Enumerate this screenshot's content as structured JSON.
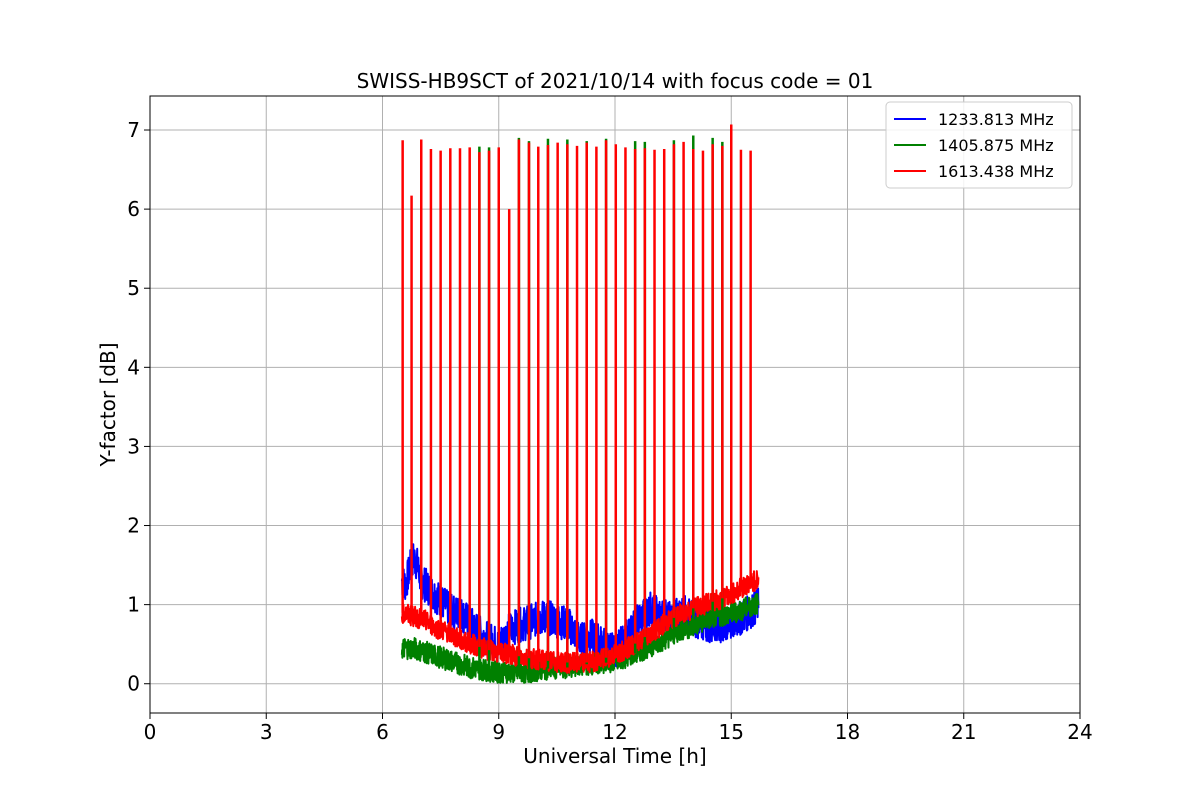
{
  "chart_data": {
    "type": "line",
    "title": "SWISS-HB9SCT of 2021/10/14 with focus code = 01",
    "xlabel": "Universal Time [h]",
    "ylabel": "Y-factor [dB]",
    "xlim": [
      0,
      24
    ],
    "ylim": [
      -0.37,
      7.43
    ],
    "xticks": [
      0,
      3,
      6,
      9,
      12,
      15,
      18,
      21,
      24
    ],
    "yticks": [
      0,
      1,
      2,
      3,
      4,
      5,
      6,
      7
    ],
    "grid": true,
    "legend_position": "top-right",
    "series": [
      {
        "name": "1233.813 MHz",
        "color": "#0000ff",
        "x": [
          6.5,
          6.6,
          6.7,
          6.8,
          6.9,
          7.0,
          7.2,
          7.5,
          7.8,
          8.0,
          8.3,
          8.6,
          9.0,
          9.3,
          9.6,
          9.9,
          10.2,
          10.5,
          10.8,
          11.1,
          11.4,
          11.7,
          12.0,
          12.3,
          12.6,
          12.9,
          13.2,
          13.5,
          13.8,
          14.1,
          14.4,
          14.7,
          15.0,
          15.3,
          15.6,
          15.7
        ],
        "values": [
          1.3,
          1.25,
          1.45,
          1.6,
          1.5,
          1.3,
          1.2,
          1.05,
          0.9,
          0.9,
          0.75,
          0.6,
          0.5,
          0.7,
          0.75,
          0.8,
          0.85,
          0.8,
          0.75,
          0.55,
          0.6,
          0.5,
          0.4,
          0.6,
          0.8,
          0.95,
          0.85,
          0.85,
          0.9,
          0.8,
          0.75,
          0.7,
          0.75,
          0.85,
          0.95,
          1.0
        ]
      },
      {
        "name": "1405.875 MHz",
        "color": "#008000",
        "x": [
          6.5,
          6.8,
          7.1,
          7.4,
          7.7,
          8.0,
          8.3,
          8.6,
          8.9,
          9.2,
          9.5,
          9.8,
          10.1,
          10.4,
          10.7,
          11.0,
          11.3,
          11.6,
          11.9,
          12.2,
          12.5,
          12.8,
          13.1,
          13.4,
          13.7,
          14.0,
          14.3,
          14.6,
          14.9,
          15.2,
          15.5,
          15.7
        ],
        "values": [
          0.45,
          0.45,
          0.4,
          0.35,
          0.3,
          0.25,
          0.2,
          0.18,
          0.15,
          0.15,
          0.14,
          0.15,
          0.18,
          0.2,
          0.2,
          0.22,
          0.25,
          0.25,
          0.28,
          0.32,
          0.38,
          0.45,
          0.52,
          0.6,
          0.68,
          0.72,
          0.8,
          0.85,
          0.88,
          0.92,
          0.98,
          1.02
        ]
      },
      {
        "name": "1613.438 MHz",
        "color": "#ff0000",
        "x": [
          6.5,
          6.8,
          7.1,
          7.4,
          7.7,
          8.0,
          8.3,
          8.6,
          8.9,
          9.2,
          9.5,
          9.8,
          10.1,
          10.4,
          10.7,
          11.0,
          11.3,
          11.6,
          11.9,
          12.2,
          12.5,
          12.8,
          13.1,
          13.4,
          13.7,
          14.0,
          14.3,
          14.6,
          14.9,
          15.2,
          15.5,
          15.7
        ],
        "values": [
          0.9,
          0.85,
          0.8,
          0.7,
          0.65,
          0.55,
          0.5,
          0.45,
          0.4,
          0.38,
          0.35,
          0.32,
          0.3,
          0.28,
          0.27,
          0.26,
          0.27,
          0.3,
          0.35,
          0.42,
          0.5,
          0.6,
          0.7,
          0.8,
          0.88,
          0.95,
          1.0,
          1.05,
          1.1,
          1.2,
          1.28,
          1.32
        ]
      }
    ],
    "spikes": {
      "series": "1613.438 MHz",
      "x": [
        6.52,
        6.75,
        7.0,
        7.25,
        7.5,
        7.75,
        8.0,
        8.25,
        8.5,
        8.75,
        9.0,
        9.27,
        9.52,
        9.78,
        10.02,
        10.27,
        10.52,
        10.77,
        11.02,
        11.27,
        11.52,
        11.77,
        12.02,
        12.27,
        12.52,
        12.77,
        13.02,
        13.27,
        13.52,
        13.77,
        14.02,
        14.27,
        14.52,
        14.77,
        15.0,
        15.25,
        15.5
      ],
      "values": [
        6.87,
        6.17,
        6.88,
        6.76,
        6.74,
        6.77,
        6.77,
        6.78,
        6.72,
        6.74,
        6.78,
        6.0,
        6.88,
        6.84,
        6.79,
        6.81,
        6.84,
        6.82,
        6.8,
        6.84,
        6.79,
        6.87,
        6.82,
        6.78,
        6.76,
        6.77,
        6.75,
        6.76,
        6.82,
        6.85,
        6.76,
        6.74,
        6.82,
        6.8,
        7.07,
        6.75,
        6.74
      ]
    },
    "green_spike_caps": {
      "x": [
        8.5,
        8.75,
        9.52,
        9.78,
        10.27,
        10.77,
        11.27,
        11.77,
        12.52,
        12.77,
        13.52,
        14.02,
        14.52,
        14.77
      ],
      "values": [
        6.79,
        6.78,
        6.9,
        6.86,
        6.89,
        6.88,
        6.86,
        6.89,
        6.86,
        6.85,
        6.87,
        6.93,
        6.9,
        6.85
      ]
    }
  }
}
